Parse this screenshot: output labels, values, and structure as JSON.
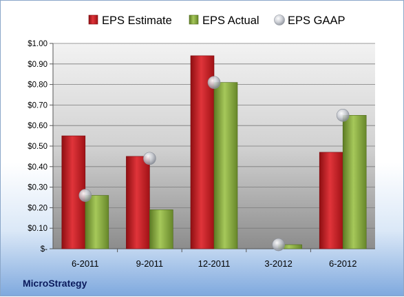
{
  "chart_data": {
    "type": "bar",
    "categories": [
      "6-2011",
      "9-2011",
      "12-2011",
      "3-2012",
      "6-2012"
    ],
    "series": [
      {
        "name": "EPS Estimate",
        "values": [
          0.55,
          0.45,
          0.94,
          0,
          0.47
        ],
        "color": "#c0171c"
      },
      {
        "name": "EPS Actual",
        "values": [
          0.26,
          0.19,
          0.81,
          0.02,
          0.65
        ],
        "color": "#7ea23a"
      }
    ],
    "markers": {
      "name": "EPS GAAP",
      "values": [
        0.26,
        0.44,
        0.81,
        0.02,
        0.65
      ],
      "color": "#c8ccd4"
    },
    "y_ticks": [
      "$-",
      "$0.10",
      "$0.20",
      "$0.30",
      "$0.40",
      "$0.50",
      "$0.60",
      "$0.70",
      "$0.80",
      "$0.90",
      "$1.00"
    ],
    "ylim": [
      0,
      1.0
    ],
    "grid": true,
    "legend_position": "top"
  },
  "footer": {
    "company": "MicroStrategy"
  }
}
